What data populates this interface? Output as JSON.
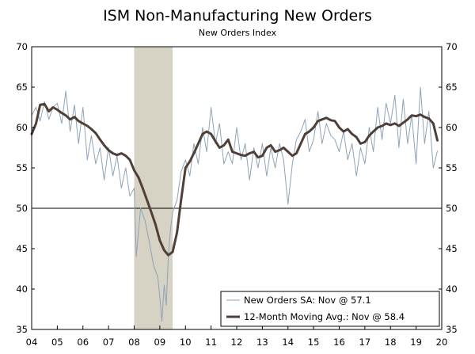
{
  "chart_data": {
    "type": "line",
    "title": "ISM Non-Manufacturing New Orders",
    "subtitle": "New Orders Index",
    "xlabel": "",
    "ylabel": "",
    "x_range": [
      2004.0,
      2020.0
    ],
    "ylim": [
      35,
      70
    ],
    "yticks": [
      35,
      40,
      45,
      50,
      55,
      60,
      65,
      70
    ],
    "xtick_labels": [
      "04",
      "05",
      "06",
      "07",
      "08",
      "09",
      "10",
      "11",
      "12",
      "13",
      "14",
      "15",
      "16",
      "17",
      "18",
      "19",
      "20"
    ],
    "reference_line": 50,
    "recession_band": [
      2008.0,
      2009.5
    ],
    "colors": {
      "monthly": "#8fa3b8",
      "moving_avg": "#4e4039",
      "recession": "#d6d2c4",
      "axis": "#000000",
      "reference": "#000000"
    },
    "series": [
      {
        "name": "New Orders SA: Nov @ 57.1",
        "style": "thin",
        "x": [
          2004.0,
          2004.17,
          2004.33,
          2004.5,
          2004.67,
          2004.83,
          2005.0,
          2005.17,
          2005.33,
          2005.5,
          2005.67,
          2005.83,
          2006.0,
          2006.17,
          2006.33,
          2006.5,
          2006.67,
          2006.83,
          2007.0,
          2007.17,
          2007.33,
          2007.5,
          2007.67,
          2007.83,
          2008.0,
          2008.08,
          2008.25,
          2008.42,
          2008.58,
          2008.75,
          2008.92,
          2009.0,
          2009.08,
          2009.17,
          2009.25,
          2009.33,
          2009.42,
          2009.5,
          2009.67,
          2009.83,
          2010.0,
          2010.17,
          2010.33,
          2010.5,
          2010.67,
          2010.83,
          2011.0,
          2011.17,
          2011.33,
          2011.5,
          2011.67,
          2011.83,
          2012.0,
          2012.17,
          2012.33,
          2012.5,
          2012.67,
          2012.83,
          2013.0,
          2013.17,
          2013.33,
          2013.5,
          2013.67,
          2013.83,
          2014.0,
          2014.17,
          2014.33,
          2014.5,
          2014.67,
          2014.83,
          2015.0,
          2015.17,
          2015.33,
          2015.5,
          2015.67,
          2015.83,
          2016.0,
          2016.17,
          2016.33,
          2016.5,
          2016.67,
          2016.83,
          2017.0,
          2017.17,
          2017.33,
          2017.5,
          2017.67,
          2017.83,
          2018.0,
          2018.17,
          2018.33,
          2018.5,
          2018.67,
          2018.83,
          2019.0,
          2019.17,
          2019.33,
          2019.5,
          2019.67,
          2019.83
        ],
        "y": [
          61.5,
          62.5,
          60.8,
          63.2,
          61.0,
          62.5,
          63.0,
          60.5,
          64.5,
          59.5,
          62.8,
          58.0,
          62.5,
          56.0,
          59.0,
          55.5,
          57.5,
          53.5,
          57.5,
          54.0,
          56.5,
          52.5,
          55.0,
          51.5,
          52.5,
          44.0,
          50.0,
          48.5,
          46.0,
          43.0,
          41.5,
          39.0,
          36.0,
          40.5,
          38.0,
          44.0,
          47.5,
          49.5,
          51.0,
          54.5,
          56.0,
          54.0,
          58.0,
          55.5,
          60.0,
          57.0,
          62.5,
          58.0,
          60.5,
          55.5,
          57.0,
          55.5,
          60.0,
          56.0,
          58.0,
          53.5,
          57.5,
          55.0,
          58.0,
          54.0,
          57.5,
          55.0,
          58.0,
          56.0,
          50.5,
          55.5,
          58.5,
          59.5,
          61.0,
          57.0,
          58.5,
          62.0,
          58.0,
          60.5,
          59.0,
          58.5,
          57.0,
          59.5,
          56.0,
          58.0,
          54.0,
          57.5,
          55.5,
          60.0,
          57.0,
          62.5,
          58.5,
          63.0,
          60.5,
          64.0,
          57.5,
          63.5,
          58.0,
          61.5,
          55.5,
          65.0,
          58.0,
          62.0,
          55.0,
          57.1
        ]
      },
      {
        "name": "12-Month Moving Avg.: Nov @ 58.4",
        "style": "thick",
        "x": [
          2004.0,
          2004.17,
          2004.33,
          2004.5,
          2004.67,
          2004.83,
          2005.0,
          2005.17,
          2005.33,
          2005.5,
          2005.67,
          2005.83,
          2006.0,
          2006.17,
          2006.33,
          2006.5,
          2006.67,
          2006.83,
          2007.0,
          2007.17,
          2007.33,
          2007.5,
          2007.67,
          2007.83,
          2008.0,
          2008.17,
          2008.33,
          2008.5,
          2008.67,
          2008.83,
          2009.0,
          2009.17,
          2009.33,
          2009.5,
          2009.67,
          2009.83,
          2010.0,
          2010.17,
          2010.33,
          2010.5,
          2010.67,
          2010.83,
          2011.0,
          2011.17,
          2011.33,
          2011.5,
          2011.67,
          2011.83,
          2012.0,
          2012.17,
          2012.33,
          2012.5,
          2012.67,
          2012.83,
          2013.0,
          2013.17,
          2013.33,
          2013.5,
          2013.67,
          2013.83,
          2014.0,
          2014.17,
          2014.33,
          2014.5,
          2014.67,
          2014.83,
          2015.0,
          2015.17,
          2015.33,
          2015.5,
          2015.67,
          2015.83,
          2016.0,
          2016.17,
          2016.33,
          2016.5,
          2016.67,
          2016.83,
          2017.0,
          2017.17,
          2017.33,
          2017.5,
          2017.67,
          2017.83,
          2018.0,
          2018.17,
          2018.33,
          2018.5,
          2018.67,
          2018.83,
          2019.0,
          2019.17,
          2019.33,
          2019.5,
          2019.67,
          2019.83
        ],
        "y": [
          59.2,
          60.5,
          62.8,
          62.9,
          62.0,
          62.5,
          62.2,
          61.8,
          61.5,
          61.0,
          61.3,
          60.8,
          60.5,
          60.2,
          59.8,
          59.3,
          58.5,
          57.8,
          57.2,
          56.8,
          56.6,
          56.8,
          56.5,
          56.0,
          54.7,
          53.8,
          52.5,
          51.0,
          49.5,
          48.0,
          46.0,
          44.8,
          44.2,
          44.6,
          47.0,
          51.0,
          55.0,
          55.8,
          56.8,
          58.0,
          59.2,
          59.5,
          59.2,
          58.3,
          57.5,
          57.8,
          58.5,
          57.0,
          56.8,
          56.6,
          56.5,
          56.8,
          57.0,
          56.3,
          56.5,
          57.5,
          57.8,
          57.0,
          57.2,
          57.5,
          57.0,
          56.5,
          56.8,
          58.0,
          59.2,
          59.5,
          60.0,
          60.8,
          61.0,
          61.2,
          60.9,
          60.8,
          60.0,
          59.5,
          59.8,
          59.2,
          58.8,
          58.0,
          58.2,
          59.0,
          59.5,
          60.0,
          60.2,
          60.5,
          60.3,
          60.5,
          60.2,
          60.6,
          61.0,
          61.5,
          61.4,
          61.6,
          61.3,
          61.1,
          60.5,
          58.4
        ]
      }
    ]
  }
}
